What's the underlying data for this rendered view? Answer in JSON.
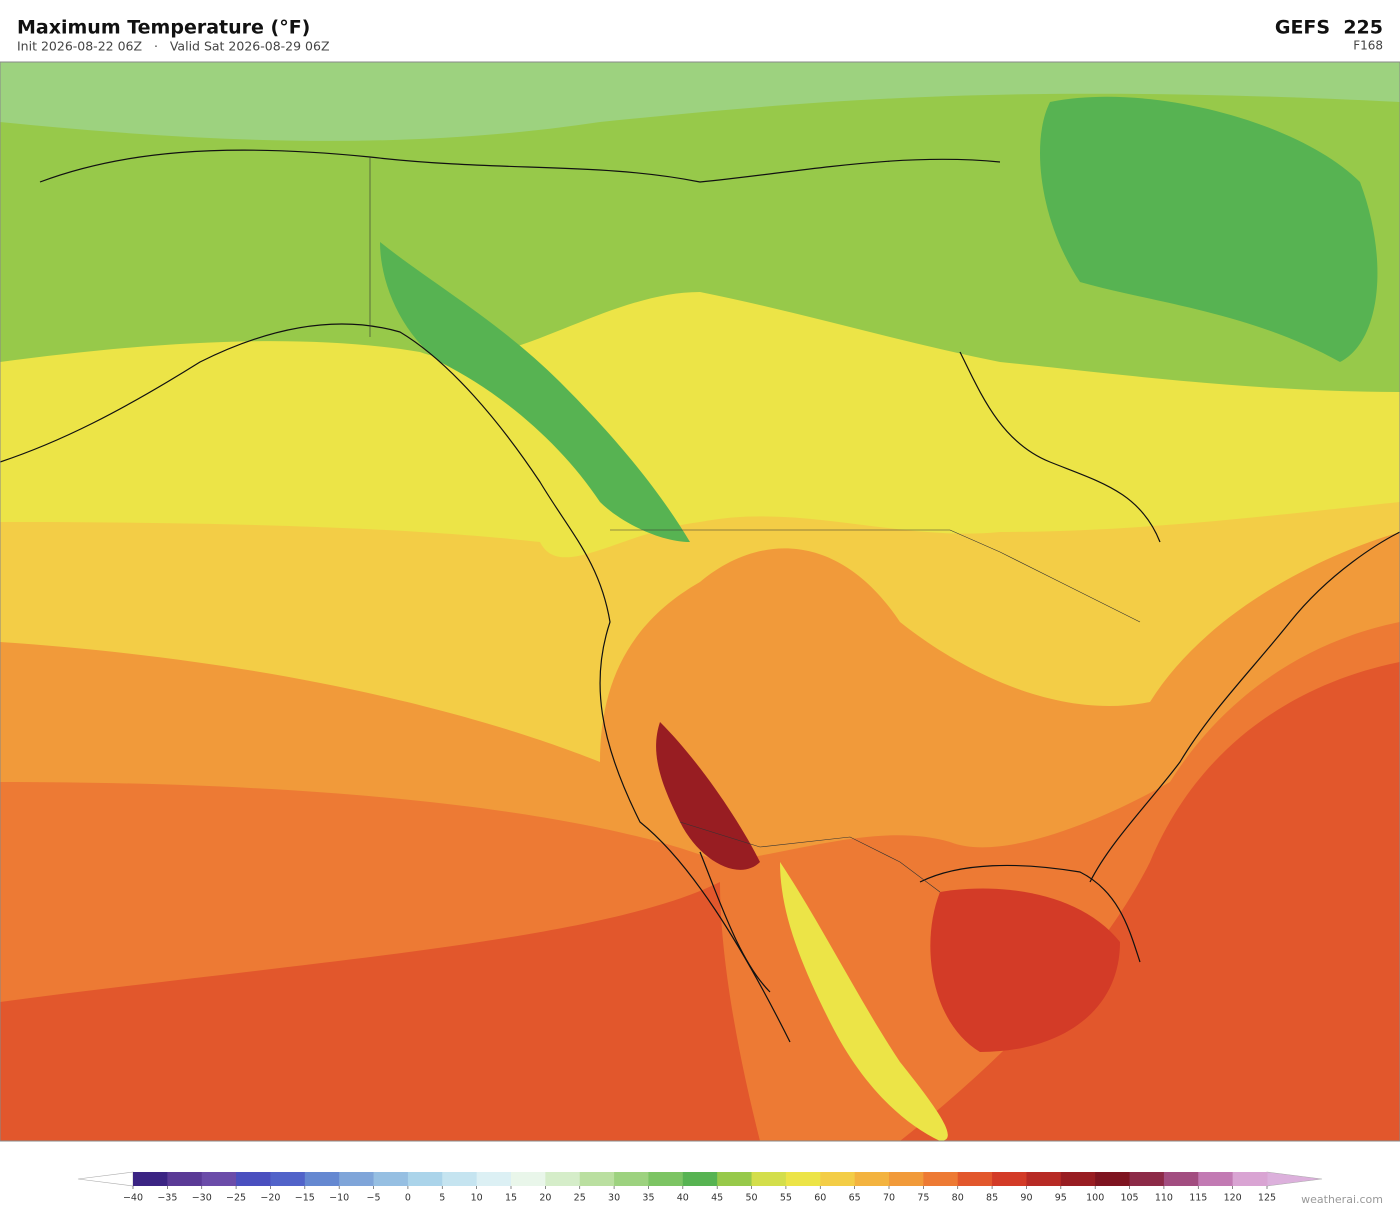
{
  "header": {
    "title": "Maximum Temperature  (°F)",
    "subtitle": "Init 2026-08-22 06Z   ·   Valid Sat 2026-08-29 06Z",
    "model": "GEFS  225",
    "forecast_hour": "F168"
  },
  "colorbar": {
    "ticks": [
      {
        "value": -40,
        "label": "−40"
      },
      {
        "value": -35,
        "label": "−35"
      },
      {
        "value": -30,
        "label": "−30"
      },
      {
        "value": -25,
        "label": "−25"
      },
      {
        "value": -20,
        "label": "−20"
      },
      {
        "value": -15,
        "label": "−15"
      },
      {
        "value": -10,
        "label": "−10"
      },
      {
        "value": -5,
        "label": "−5"
      },
      0,
      5,
      10,
      15,
      20,
      25,
      30,
      35,
      40,
      45,
      50,
      55,
      60,
      65,
      70,
      75,
      80,
      85,
      90,
      95,
      100,
      105,
      110,
      115,
      120,
      125
    ],
    "colors": [
      "#3b2483",
      "#5a3a96",
      "#6b4ca9",
      "#4a4fbf",
      "#5163c9",
      "#6588d1",
      "#7fa5d9",
      "#96bfe2",
      "#abd4ea",
      "#c5e4f0",
      "#dcf0f4",
      "#e9f6ea",
      "#d5edc9",
      "#badfa0",
      "#9dd27f",
      "#7cc463",
      "#57b352",
      "#97c94a",
      "#d3de4b",
      "#ece447",
      "#f3cd46",
      "#f3b33f",
      "#f19a3a",
      "#ed7a34",
      "#e2572c",
      "#d33b27",
      "#b72a25",
      "#981d22",
      "#7e1420",
      "#8c2a47",
      "#a24d80",
      "#c27ab3",
      "#d9a4d3"
    ],
    "under_color": "#ffffff",
    "over_color": "#dcb0dc"
  },
  "watermark": "weatherai.com"
}
